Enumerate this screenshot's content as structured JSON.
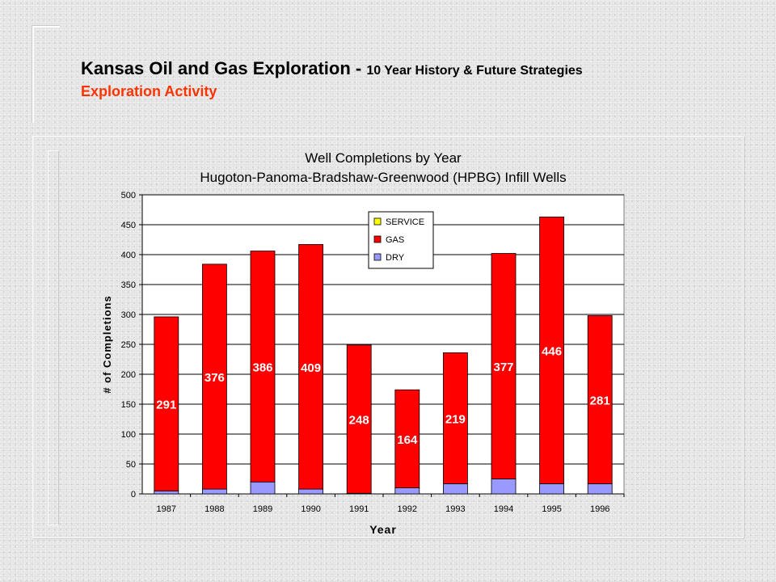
{
  "header": {
    "title_main": "Kansas Oil and Gas Exploration - ",
    "title_sub": "10 Year History & Future Strategies",
    "subtitle": "Exploration Activity"
  },
  "chart_data": {
    "type": "bar",
    "stacked": true,
    "title": "Well Completions by Year",
    "subtitle": "Hugoton-Panoma-Bradshaw-Greenwood (HPBG) Infill Wells",
    "xlabel": "Year",
    "ylabel": "# of Completions",
    "ylim": [
      0,
      500
    ],
    "yticks": [
      "0",
      "50",
      "100",
      "150",
      "200",
      "250",
      "300",
      "350",
      "400",
      "450",
      "500"
    ],
    "categories": [
      "1987",
      "1988",
      "1989",
      "1990",
      "1991",
      "1992",
      "1993",
      "1994",
      "1995",
      "1996"
    ],
    "series": [
      {
        "name": "DRY",
        "color": "#9999ff",
        "values": [
          5,
          8,
          20,
          8,
          1,
          10,
          17,
          25,
          17,
          17
        ],
        "labels": [
          "",
          "",
          "",
          "",
          "",
          "",
          "",
          "",
          "",
          ""
        ]
      },
      {
        "name": "GAS",
        "color": "#ff0000",
        "values": [
          291,
          376,
          386,
          409,
          248,
          164,
          219,
          377,
          446,
          281
        ],
        "labels": [
          "291",
          "376",
          "386",
          "409",
          "248",
          "164",
          "219",
          "377",
          "446",
          "281"
        ]
      },
      {
        "name": "SERVICE",
        "color": "#ffff00",
        "values": [
          0,
          0,
          0,
          0,
          0,
          0,
          0,
          0,
          0,
          0
        ],
        "labels": [
          "",
          "",
          "",
          "",
          "",
          "",
          "",
          "",
          "",
          ""
        ]
      }
    ],
    "legend": {
      "position": "top-center",
      "order": [
        "SERVICE",
        "GAS",
        "DRY"
      ]
    },
    "grid": true
  }
}
